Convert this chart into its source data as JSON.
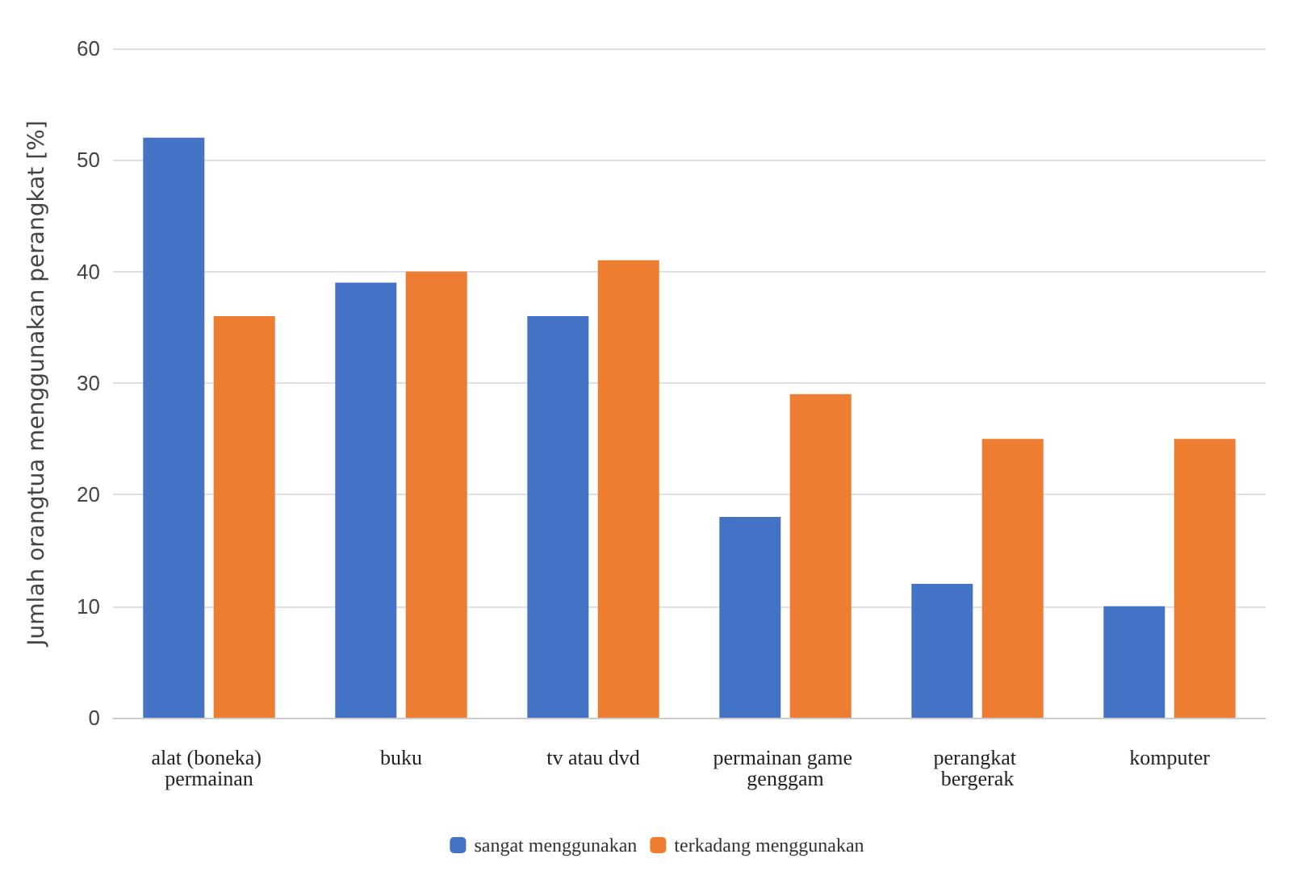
{
  "chart_data": {
    "type": "bar",
    "ylabel": "Jumlah orangtua menggunakan perangkat [%]",
    "categories": [
      "alat (boneka) permainan",
      "buku",
      "tv atau dvd",
      "permainan game genggam",
      "perangkat bergerak",
      "komputer"
    ],
    "series": [
      {
        "name": "sangat menggunakan",
        "color": "#4472c4",
        "values": [
          52,
          39,
          36,
          18,
          12,
          10
        ]
      },
      {
        "name": "terkadang menggunakan",
        "color": "#ed7d31",
        "values": [
          36,
          40,
          41,
          29,
          25,
          25
        ]
      }
    ],
    "ylim": [
      0,
      60
    ],
    "yticks": [
      0,
      10,
      20,
      30,
      40,
      50,
      60
    ],
    "grid": "y",
    "legend": "bottom"
  }
}
